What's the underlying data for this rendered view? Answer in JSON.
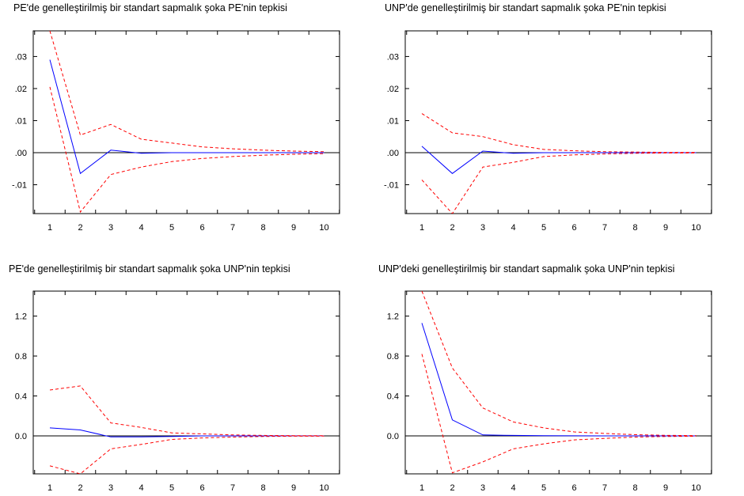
{
  "chart_data": [
    {
      "type": "line",
      "title": "PE'de genelleştirilmiş bir standart sapmalık şoka PE'nin tepkisi",
      "x": [
        1,
        2,
        3,
        4,
        5,
        6,
        7,
        8,
        9,
        10
      ],
      "ylim": [
        -0.019,
        0.038
      ],
      "yticks": [
        ".03",
        ".02",
        ".01",
        ".00",
        "-.01"
      ],
      "ytick_values": [
        0.03,
        0.02,
        0.01,
        0.0,
        -0.01
      ],
      "zero_line": true,
      "series": [
        {
          "role": "response",
          "color": "#0000ff",
          "style": "solid",
          "values": [
            0.029,
            -0.0065,
            0.0008,
            -0.0002,
            0.0,
            0.0,
            0.0,
            0.0,
            0.0,
            0.0
          ]
        },
        {
          "role": "upper",
          "color": "#ff0000",
          "style": "dashed",
          "values": [
            0.038,
            0.0055,
            0.0088,
            0.0042,
            0.003,
            0.0018,
            0.0012,
            0.0008,
            0.0005,
            0.0003
          ]
        },
        {
          "role": "lower",
          "color": "#ff0000",
          "style": "dashed",
          "values": [
            0.0205,
            -0.0185,
            -0.0068,
            -0.0045,
            -0.0028,
            -0.0018,
            -0.0012,
            -0.0008,
            -0.0005,
            -0.0003
          ]
        }
      ]
    },
    {
      "type": "line",
      "title": "UNP'de genelleştirilmiş bir standart sapmalık şoka PE'nin tepkisi",
      "x": [
        1,
        2,
        3,
        4,
        5,
        6,
        7,
        8,
        9,
        10
      ],
      "ylim": [
        -0.019,
        0.038
      ],
      "yticks": [
        ".03",
        ".02",
        ".01",
        ".00",
        "-.01"
      ],
      "ytick_values": [
        0.03,
        0.02,
        0.01,
        0.0,
        -0.01
      ],
      "zero_line": true,
      "series": [
        {
          "role": "response",
          "color": "#0000ff",
          "style": "solid",
          "values": [
            0.002,
            -0.0065,
            0.0005,
            -0.0002,
            0.0,
            0.0,
            0.0,
            0.0,
            0.0,
            0.0
          ]
        },
        {
          "role": "upper",
          "color": "#ff0000",
          "style": "dashed",
          "values": [
            0.0122,
            0.0062,
            0.005,
            0.0025,
            0.001,
            0.0006,
            0.0003,
            0.0002,
            0.0001,
            0.0001
          ]
        },
        {
          "role": "lower",
          "color": "#ff0000",
          "style": "dashed",
          "values": [
            -0.0085,
            -0.019,
            -0.0045,
            -0.003,
            -0.0012,
            -0.0007,
            -0.0004,
            -0.0002,
            -0.0001,
            -0.0001
          ]
        }
      ]
    },
    {
      "type": "line",
      "title": "PE'de genelleştirilmiş bir standart sapmalık şoka UNP'nin tepkisi",
      "x": [
        1,
        2,
        3,
        4,
        5,
        6,
        7,
        8,
        9,
        10
      ],
      "ylim": [
        -0.38,
        1.45
      ],
      "yticks": [
        "1.2",
        "0.8",
        "0.4",
        "0.0"
      ],
      "ytick_values": [
        1.2,
        0.8,
        0.4,
        0.0
      ],
      "zero_line": true,
      "series": [
        {
          "role": "response",
          "color": "#0000ff",
          "style": "solid",
          "values": [
            0.08,
            0.06,
            -0.01,
            -0.01,
            -0.005,
            0.0,
            0.0,
            0.0,
            0.0,
            0.0
          ]
        },
        {
          "role": "upper",
          "color": "#ff0000",
          "style": "dashed",
          "values": [
            0.46,
            0.5,
            0.13,
            0.085,
            0.03,
            0.02,
            0.01,
            0.005,
            0.003,
            0.002
          ]
        },
        {
          "role": "lower",
          "color": "#ff0000",
          "style": "dashed",
          "values": [
            -0.3,
            -0.38,
            -0.13,
            -0.085,
            -0.035,
            -0.02,
            -0.012,
            -0.006,
            -0.003,
            -0.002
          ]
        }
      ]
    },
    {
      "type": "line",
      "title": "UNP'deki genelleştirilmiş bir standart sapmalık şoka UNP'nin tepkisi",
      "x": [
        1,
        2,
        3,
        4,
        5,
        6,
        7,
        8,
        9,
        10
      ],
      "ylim": [
        -0.38,
        1.45
      ],
      "yticks": [
        "1.2",
        "0.8",
        "0.4",
        "0.0"
      ],
      "ytick_values": [
        1.2,
        0.8,
        0.4,
        0.0
      ],
      "zero_line": true,
      "series": [
        {
          "role": "response",
          "color": "#0000ff",
          "style": "solid",
          "values": [
            1.13,
            0.16,
            0.01,
            0.005,
            0.002,
            0.001,
            0.0,
            0.0,
            0.0,
            0.0
          ]
        },
        {
          "role": "upper",
          "color": "#ff0000",
          "style": "dashed",
          "values": [
            1.45,
            0.68,
            0.28,
            0.14,
            0.08,
            0.04,
            0.025,
            0.012,
            0.006,
            0.003
          ]
        },
        {
          "role": "lower",
          "color": "#ff0000",
          "style": "dashed",
          "values": [
            0.82,
            -0.37,
            -0.26,
            -0.13,
            -0.08,
            -0.04,
            -0.025,
            -0.012,
            -0.006,
            -0.003
          ]
        }
      ]
    }
  ]
}
